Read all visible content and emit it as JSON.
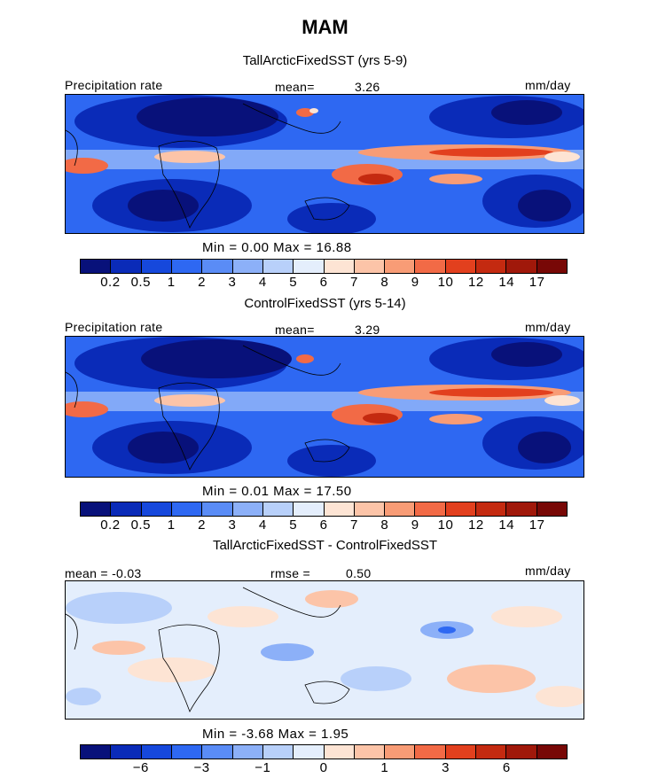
{
  "title": "MAM",
  "panels": [
    {
      "subtitle": "TallArcticFixedSST (yrs 5-9)",
      "left_label": "Precipitation rate",
      "mean_label": "mean=",
      "mean_value": "3.26",
      "units": "mm/day",
      "minmax": "Min =    0.00  Max =   16.88"
    },
    {
      "subtitle": "ControlFixedSST (yrs 5-14)",
      "left_label": "Precipitation rate",
      "mean_label": "mean=",
      "mean_value": "3.29",
      "units": "mm/day",
      "minmax": "Min =    0.01  Max =   17.50"
    },
    {
      "subtitle": "TallArcticFixedSST - ControlFixedSST",
      "left_label": "mean =  -0.03",
      "mean_label": "rmse =",
      "mean_value": "0.50",
      "units": "mm/day",
      "minmax": "Min =  -3.68  Max =    1.95"
    }
  ],
  "colorbars": {
    "abs_colors": [
      "#08117a",
      "#0a2bb8",
      "#1648dc",
      "#2e68f2",
      "#5a8cf6",
      "#8cb0f8",
      "#b8d0fa",
      "#e4eefc",
      "#fde4d4",
      "#fcc4a8",
      "#f89c76",
      "#f26a46",
      "#e2401e",
      "#c42a10",
      "#a0180a",
      "#780806"
    ],
    "abs_ticks": [
      "0.2",
      "0.5",
      "1",
      "2",
      "3",
      "4",
      "5",
      "6",
      "7",
      "8",
      "9",
      "10",
      "12",
      "14",
      "17"
    ],
    "diff_colors": [
      "#08117a",
      "#0a2bb8",
      "#1648dc",
      "#2e68f2",
      "#5a8cf6",
      "#8cb0f8",
      "#b8d0fa",
      "#e4eefc",
      "#fde4d4",
      "#fcc4a8",
      "#f89c76",
      "#f26a46",
      "#e2401e",
      "#c42a10",
      "#a0180a",
      "#780806"
    ],
    "diff_ticks": [
      "-6",
      "-3",
      "-1",
      "0",
      "1",
      "3",
      "6"
    ]
  },
  "chart_data": [
    {
      "type": "heatmap",
      "title": "TallArcticFixedSST (yrs 5-9)",
      "variable": "Precipitation rate",
      "units": "mm/day",
      "mean": 3.26,
      "min": 0.0,
      "max": 16.88,
      "levels": [
        0.2,
        0.5,
        1,
        2,
        3,
        4,
        5,
        6,
        7,
        8,
        9,
        10,
        12,
        14,
        17
      ]
    },
    {
      "type": "heatmap",
      "title": "ControlFixedSST (yrs 5-14)",
      "variable": "Precipitation rate",
      "units": "mm/day",
      "mean": 3.29,
      "min": 0.01,
      "max": 17.5,
      "levels": [
        0.2,
        0.5,
        1,
        2,
        3,
        4,
        5,
        6,
        7,
        8,
        9,
        10,
        12,
        14,
        17
      ]
    },
    {
      "type": "heatmap",
      "title": "TallArcticFixedSST - ControlFixedSST",
      "units": "mm/day",
      "mean": -0.03,
      "rmse": 0.5,
      "min": -3.68,
      "max": 1.95,
      "levels": [
        -6,
        -3,
        -1,
        0,
        1,
        3,
        6
      ]
    }
  ]
}
